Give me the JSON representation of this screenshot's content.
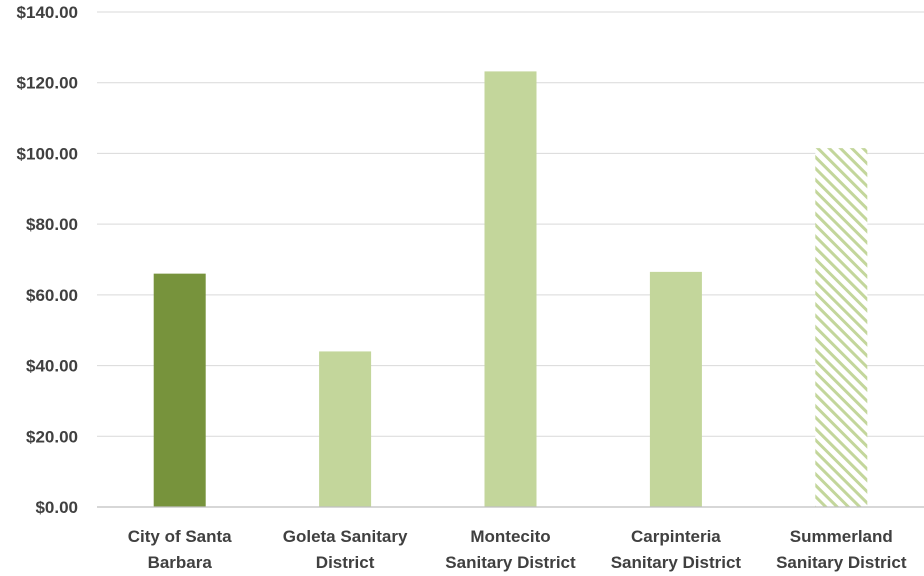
{
  "chart_data": {
    "type": "bar",
    "categories": [
      [
        "City of Santa",
        "Barbara"
      ],
      [
        "Goleta Sanitary",
        "District"
      ],
      [
        "Montecito",
        "Sanitary District"
      ],
      [
        "Carpinteria",
        "Sanitary District"
      ],
      [
        "Summerland",
        "Sanitary District"
      ]
    ],
    "values": [
      66,
      44,
      123.2,
      66.5,
      101.5
    ],
    "y_tick_labels": [
      "$0.00",
      "$20.00",
      "$40.00",
      "$60.00",
      "$80.00",
      "$100.00",
      "$120.00",
      "$140.00"
    ],
    "y_ticks": [
      0,
      20,
      40,
      60,
      80,
      100,
      120,
      140
    ],
    "ylim": [
      0,
      140
    ],
    "grid": true,
    "legend": "none",
    "bar_styles": [
      "solid-dark",
      "solid-light",
      "solid-light",
      "solid-light",
      "hatched-light"
    ],
    "colors": {
      "dark": "#77933c",
      "light": "#c3d69b",
      "hatch_line": "#c3d69b"
    }
  }
}
